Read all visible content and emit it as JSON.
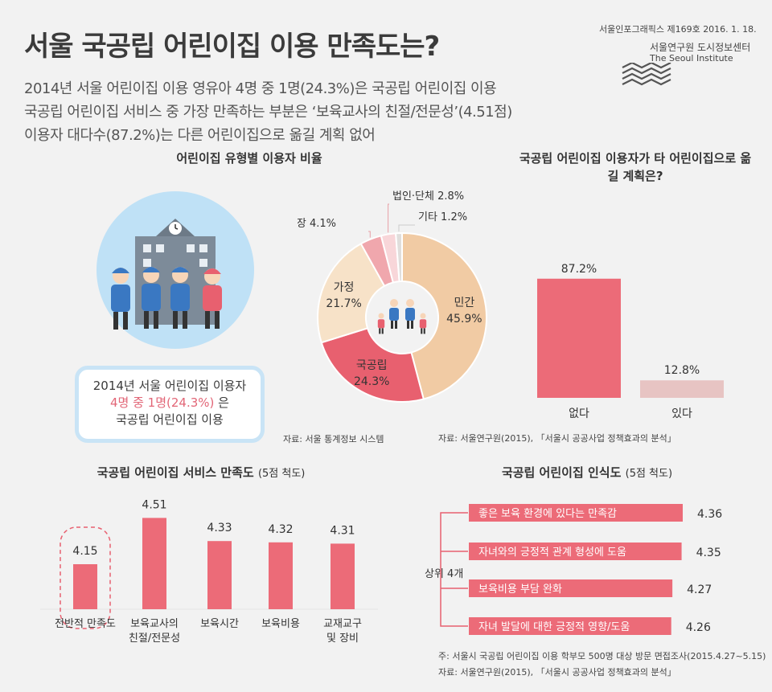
{
  "header": {
    "title": "서울 국공립 어린이집 이용 만족도는?",
    "intro": [
      "2014년 서울 어린이집 이용 영유아 4명 중 1명(24.3%)은 국공립 어린이집 이용",
      "국공립 어린이집 서비스 중 가장 만족하는 부분은 ‘보육교사의 친절/전문성’(4.51점)",
      "이용자 대다수(87.2%)는 다른 어린이집으로 옮길 계획 없어"
    ],
    "issue": "서울인포그래픽스 제169호 2016. 1. 18.",
    "institute_ko": "서울연구원 도시정보센터",
    "institute_en": "The Seoul Institute"
  },
  "callout": {
    "line1": "2014년 서울 어린이집 이용자",
    "line2": "4명 중 1명(24.3%)",
    "line2_suffix": "은",
    "line3": "국공립 어린이집 이용"
  },
  "sources": {
    "donut": "자료: 서울 통계정보 시스템",
    "move": "자료: 서울연구원(2015), 「서울시 공공사업 정책효과의 분석」",
    "note": "주: 서울시 국공립 어린이집 이용 학부모 500명 대상 방문 면접조사(2015.4.27~5.15)",
    "recog": "자료: 서울연구원(2015), 「서울시 공공사업 정책효과의 분석」"
  },
  "recognition_group_label": "상위 4개",
  "chart_data": [
    {
      "type": "pie",
      "title": "어린이집 유형별 이용자 비율",
      "unit": "%",
      "slices": [
        {
          "label": "민간",
          "value": 45.9,
          "color": "#f1cba4"
        },
        {
          "label": "국공립",
          "value": 24.3,
          "color": "#e8606f"
        },
        {
          "label": "가정",
          "value": 21.7,
          "color": "#f7e2c8"
        },
        {
          "label": "직장",
          "value": 4.1,
          "color": "#f0a7ad"
        },
        {
          "label": "법인·단체",
          "value": 2.8,
          "color": "#f8d6d9"
        },
        {
          "label": "기타",
          "value": 1.2,
          "color": "#e0dedc"
        }
      ]
    },
    {
      "type": "bar",
      "title": "국공립 어린이집 이용자가 타 어린이집으로 옮길 계획은?",
      "categories": [
        "없다",
        "있다"
      ],
      "values": [
        87.2,
        12.8
      ],
      "value_labels": [
        "87.2%",
        "12.8%"
      ],
      "colors": [
        "#ec6b78",
        "#e7c4c3"
      ],
      "ylim": [
        0,
        100
      ]
    },
    {
      "type": "bar",
      "title": "국공립 어린이집 서비스 만족도",
      "subtitle": "(5점 척도)",
      "categories": [
        "전반적 만족도",
        "보육교사의 친절/전문성",
        "보육시간",
        "보육비용",
        "교재교구 및 장비"
      ],
      "category_lines": [
        [
          "전반적 만족도"
        ],
        [
          "보육교사의",
          "친절/전문성"
        ],
        [
          "보육시간"
        ],
        [
          "보육비용"
        ],
        [
          "교재교구",
          "및 장비"
        ]
      ],
      "values": [
        4.15,
        4.51,
        4.33,
        4.32,
        4.31
      ],
      "highlight": "전반적 만족도",
      "color": "#ec6b78"
    },
    {
      "type": "bar",
      "orientation": "horizontal",
      "title": "국공립 어린이집 인식도",
      "subtitle": "(5점 척도)",
      "categories": [
        "좋은 보육 환경에 있다는 만족감",
        "자녀와의 긍정적 관계 형성에 도움",
        "보육비용 부담 완화",
        "자녀 발달에 대한 긍정적 영향/도움"
      ],
      "values": [
        4.36,
        4.35,
        4.27,
        4.26
      ],
      "color": "#ec6b78"
    }
  ]
}
